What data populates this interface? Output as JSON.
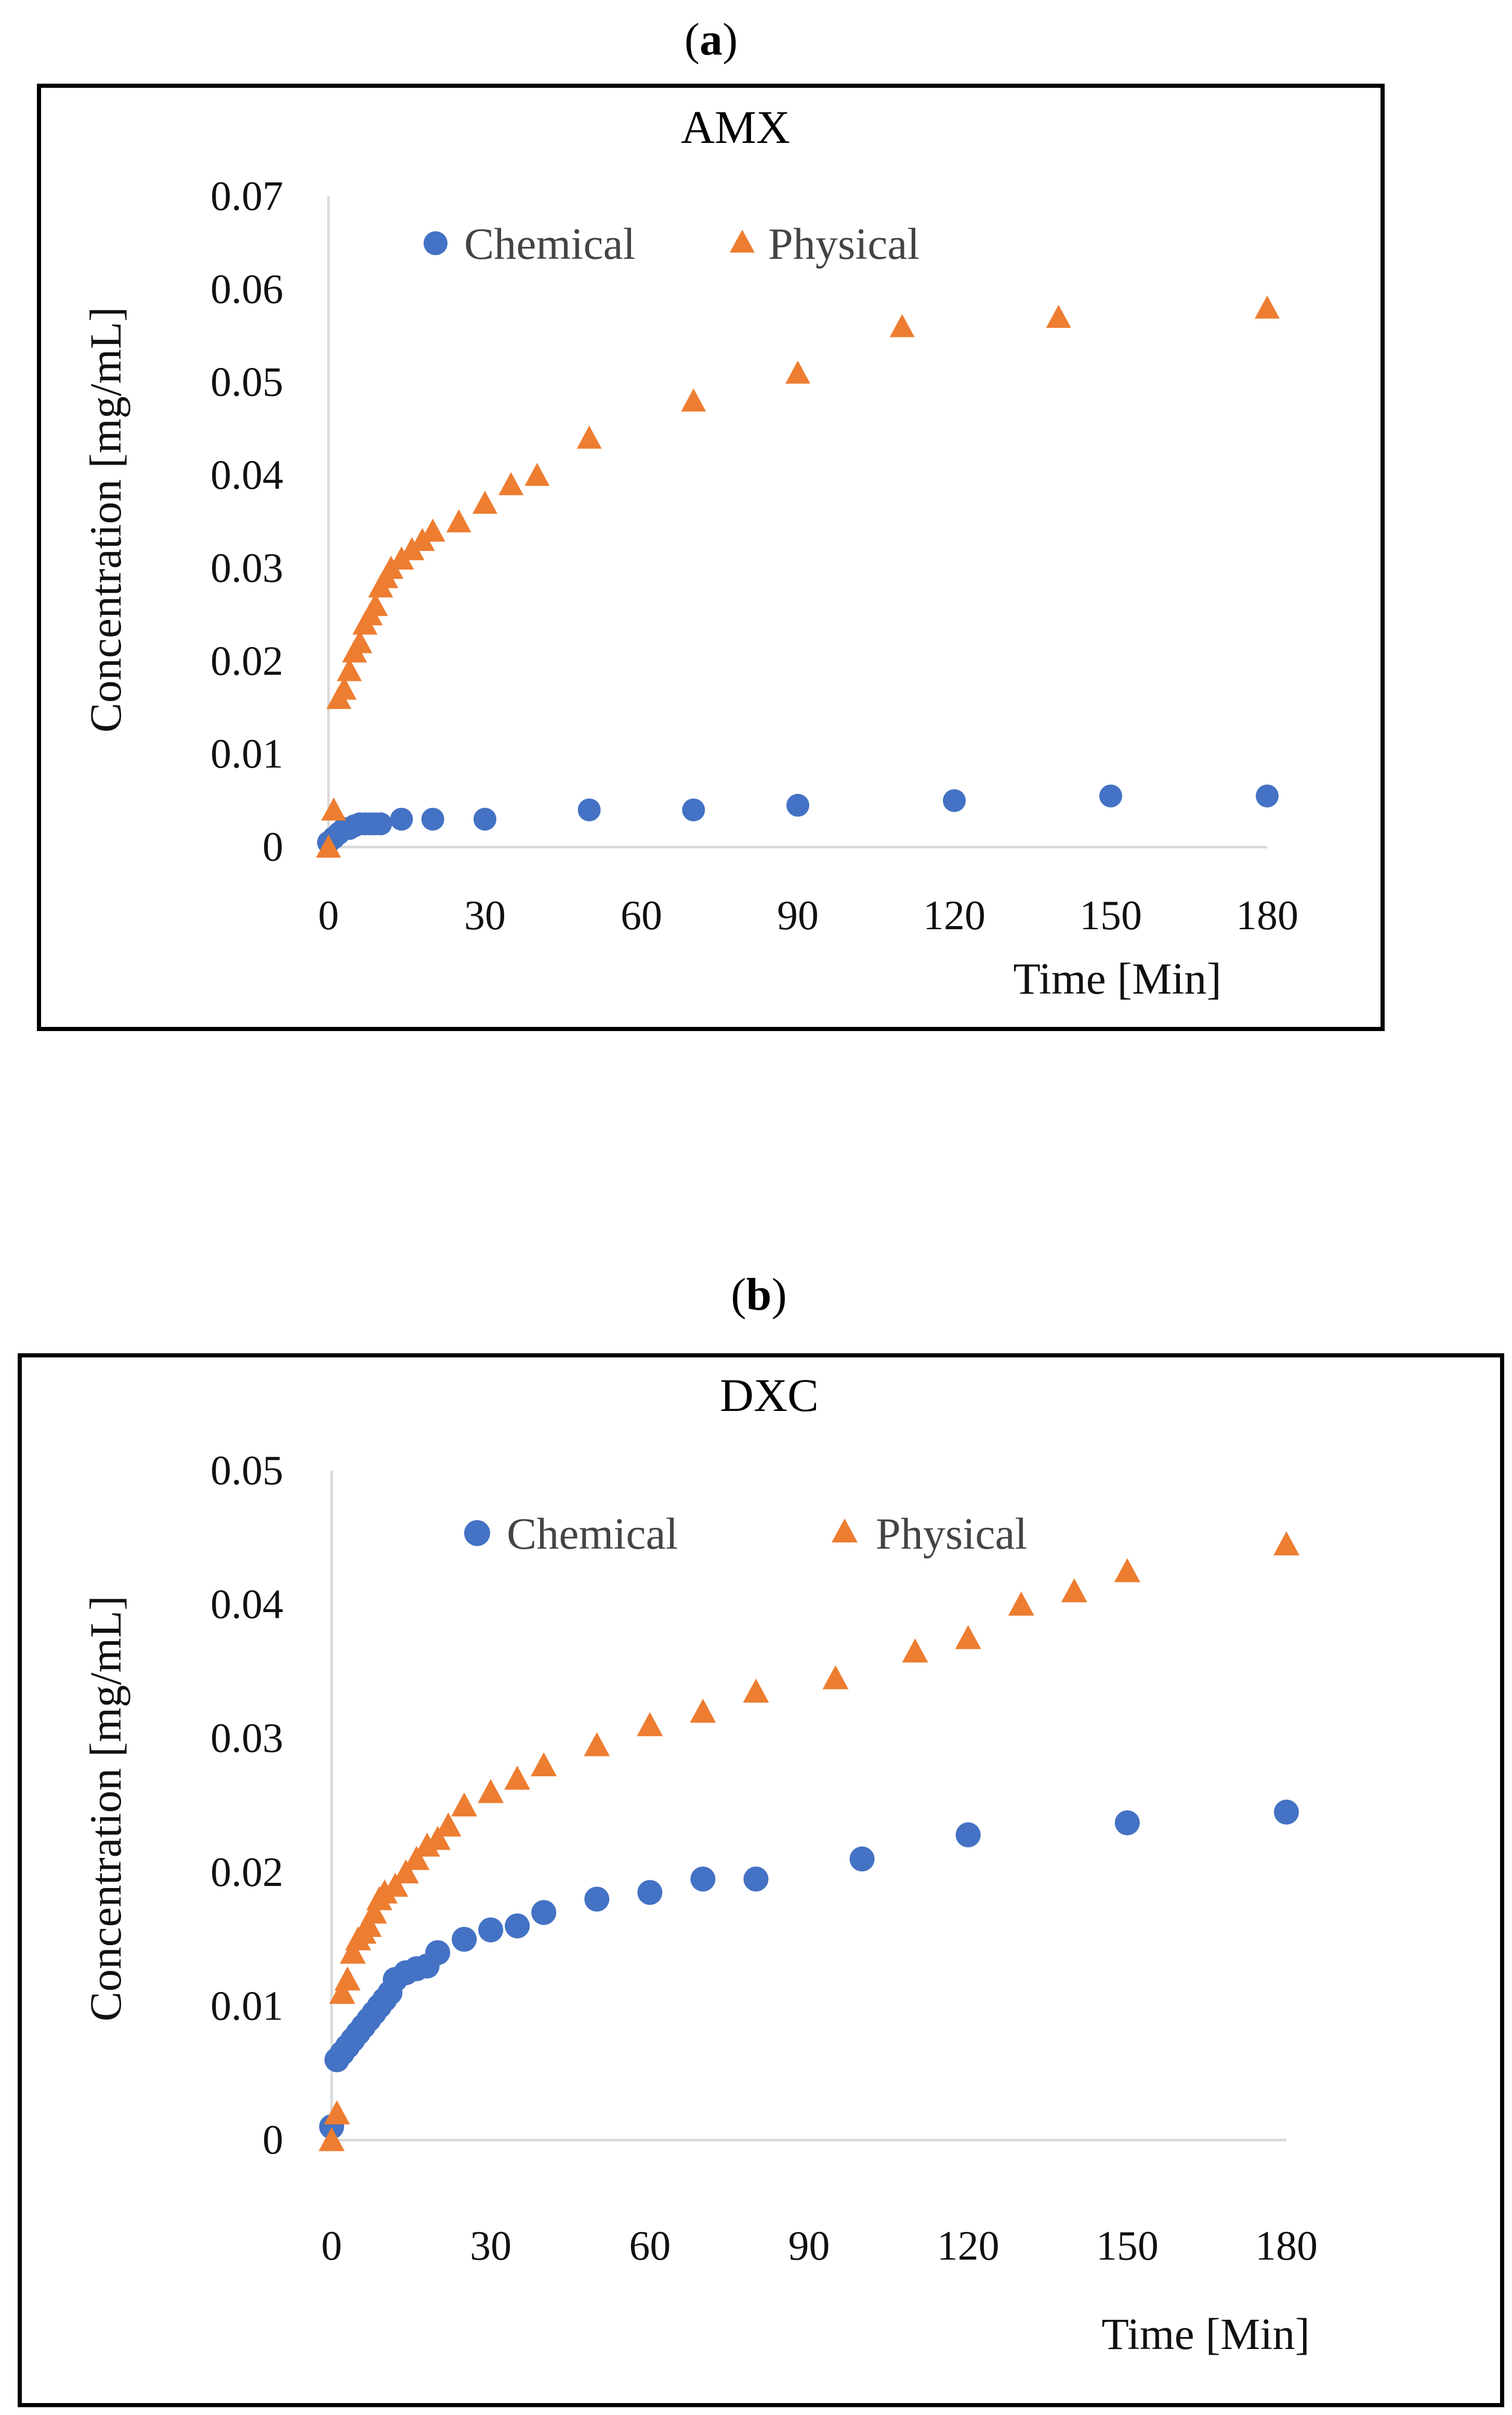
{
  "panels": [
    {
      "label_open": "(",
      "label_letter": "a",
      "label_close": ")"
    },
    {
      "label_open": "(",
      "label_letter": "b",
      "label_close": ")"
    }
  ],
  "colors": {
    "chemical": "#4472C4",
    "physical": "#ED7D31",
    "axis": "#D9D9D9",
    "frame": "#000000"
  },
  "chart_data": [
    {
      "type": "scatter",
      "title": "AMX",
      "xlabel": "Time [Min]",
      "ylabel": "Concentration [mg/mL]",
      "xlim": [
        0,
        180
      ],
      "ylim": [
        0,
        0.07
      ],
      "xticks": [
        "0",
        "30",
        "60",
        "90",
        "120",
        "150",
        "180"
      ],
      "yticks": [
        "0",
        "0.01",
        "0.02",
        "0.03",
        "0.04",
        "0.05",
        "0.06",
        "0.07"
      ],
      "legend": [
        "Chemical",
        "Physical"
      ],
      "series": [
        {
          "name": "Chemical",
          "marker": "circle",
          "x": [
            0,
            1,
            2,
            3,
            4,
            5,
            6,
            7,
            8,
            9,
            10,
            14,
            20,
            30,
            50,
            70,
            90,
            120,
            150,
            180
          ],
          "y": [
            0.0005,
            0.001,
            0.0015,
            0.002,
            0.002,
            0.0023,
            0.0025,
            0.0025,
            0.0025,
            0.0025,
            0.0025,
            0.003,
            0.003,
            0.003,
            0.004,
            0.004,
            0.0045,
            0.005,
            0.0055,
            0.0055
          ]
        },
        {
          "name": "Physical",
          "marker": "triangle",
          "x": [
            0,
            1,
            2,
            3,
            4,
            5,
            6,
            7,
            8,
            9,
            10,
            11,
            12,
            14,
            16,
            18,
            20,
            25,
            30,
            35,
            40,
            50,
            70,
            90,
            110,
            140,
            180
          ],
          "y": [
            0,
            0.004,
            0.016,
            0.017,
            0.019,
            0.021,
            0.022,
            0.024,
            0.025,
            0.026,
            0.028,
            0.029,
            0.03,
            0.031,
            0.032,
            0.033,
            0.034,
            0.035,
            0.037,
            0.039,
            0.04,
            0.044,
            0.048,
            0.051,
            0.056,
            0.057,
            0.058
          ]
        }
      ]
    },
    {
      "type": "scatter",
      "title": "DXC",
      "xlabel": "Time [Min]",
      "ylabel": "Concentration [mg/mL]",
      "xlim": [
        0,
        180
      ],
      "ylim": [
        0,
        0.05
      ],
      "xticks": [
        "0",
        "30",
        "60",
        "90",
        "120",
        "150",
        "180"
      ],
      "yticks": [
        "0",
        "0.01",
        "0.02",
        "0.03",
        "0.04",
        "0.05"
      ],
      "legend": [
        "Chemical",
        "Physical"
      ],
      "series": [
        {
          "name": "Chemical",
          "marker": "circle",
          "x": [
            0,
            1,
            2,
            3,
            4,
            5,
            6,
            7,
            8,
            9,
            10,
            11,
            12,
            14,
            16,
            18,
            20,
            25,
            30,
            35,
            40,
            50,
            60,
            70,
            80,
            100,
            120,
            150,
            180
          ],
          "y": [
            0.001,
            0.006,
            0.0065,
            0.007,
            0.0075,
            0.008,
            0.0085,
            0.009,
            0.0095,
            0.01,
            0.0105,
            0.011,
            0.012,
            0.0125,
            0.0128,
            0.013,
            0.014,
            0.015,
            0.0157,
            0.016,
            0.017,
            0.018,
            0.0185,
            0.0195,
            0.0195,
            0.021,
            0.0228,
            0.0237,
            0.0245
          ]
        },
        {
          "name": "Physical",
          "marker": "triangle",
          "x": [
            0,
            1,
            2,
            3,
            4,
            5,
            6,
            7,
            8,
            9,
            10,
            12,
            14,
            16,
            18,
            20,
            22,
            25,
            30,
            35,
            40,
            50,
            60,
            70,
            80,
            95,
            110,
            120,
            130,
            140,
            150,
            180
          ],
          "y": [
            0,
            0.002,
            0.011,
            0.012,
            0.014,
            0.015,
            0.0155,
            0.016,
            0.017,
            0.018,
            0.0185,
            0.019,
            0.02,
            0.021,
            0.022,
            0.0225,
            0.0235,
            0.025,
            0.026,
            0.027,
            0.028,
            0.0295,
            0.031,
            0.032,
            0.0335,
            0.0345,
            0.0365,
            0.0375,
            0.04,
            0.041,
            0.0425,
            0.0445
          ]
        }
      ]
    }
  ]
}
